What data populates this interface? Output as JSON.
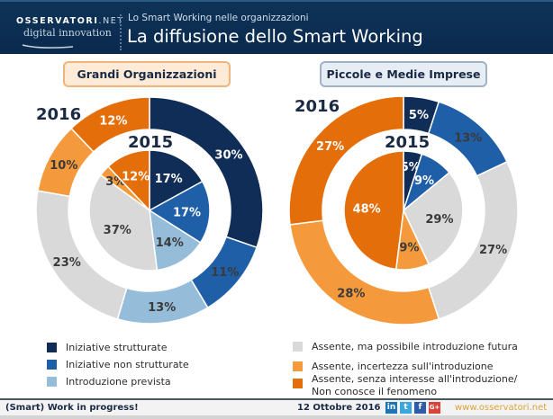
{
  "header": {
    "logo_top": "OSSERVATORI",
    "logo_net": ".NET",
    "logo_bottom": "digital innovation",
    "subtitle": "Lo Smart Working nelle organizzazioni",
    "title": "La diffusione dello Smart Working"
  },
  "colors": {
    "iniziative_strutturate": "#0f2d57",
    "iniziative_non_strutturate": "#1f5fa8",
    "introduzione_prevista": "#95bcd9",
    "assente_possibile": "#d9d9d9",
    "assente_incertezza": "#f59a3c",
    "assente_senza_interesse": "#e46f0a"
  },
  "chart_data": [
    {
      "type": "pie",
      "title": "Grandi Organizzazioni",
      "categories": [
        "Iniziative strutturate",
        "Iniziative non strutturate",
        "Introduzione prevista",
        "Assente, ma possibile introduzione futura",
        "Assente, incertezza sull'introduzione",
        "Assente, senza interesse all'introduzione/ Non conosce il fenomeno"
      ],
      "series": [
        {
          "name": "2016",
          "values": [
            30,
            11,
            13,
            23,
            10,
            12
          ],
          "labels": [
            "30%",
            "11%",
            "13%",
            "23%",
            "10%",
            "12%"
          ]
        },
        {
          "name": "2015",
          "values": [
            17,
            17,
            14,
            37,
            3,
            12
          ],
          "labels": [
            "17%",
            "17%",
            "14%",
            "37%",
            "3%",
            "12%"
          ]
        }
      ]
    },
    {
      "type": "pie",
      "title": "Piccole e Medie Imprese",
      "categories": [
        "Iniziative strutturate",
        "Iniziative non strutturate",
        "Introduzione prevista",
        "Assente, ma possibile introduzione futura",
        "Assente, incertezza sull'introduzione",
        "Assente, senza interesse all'introduzione/ Non conosce il fenomeno"
      ],
      "series": [
        {
          "name": "2016",
          "values": [
            5,
            13,
            0,
            27,
            28,
            27
          ],
          "labels": [
            "5%",
            "13%",
            "",
            "27%",
            "28%",
            "27%"
          ]
        },
        {
          "name": "2015",
          "values": [
            5,
            9,
            0,
            29,
            9,
            48
          ],
          "labels": [
            "5%",
            "9%",
            "",
            "29%",
            "9%",
            "48%"
          ]
        }
      ]
    }
  ],
  "legend": {
    "left": [
      "Iniziative strutturate",
      "Iniziative non strutturate",
      "Introduzione prevista"
    ],
    "right": [
      "Assente, ma possibile introduzione futura",
      "Assente, incertezza sull'introduzione",
      "Assente, senza interesse all'introduzione/",
      "Non conosce il fenomeno"
    ]
  },
  "footer": {
    "tagline": "(Smart) Work in progress!",
    "date": "12 Ottobre 2016",
    "social": [
      "in",
      "t",
      "f",
      "G+"
    ],
    "url": "www.osservatori.net"
  }
}
